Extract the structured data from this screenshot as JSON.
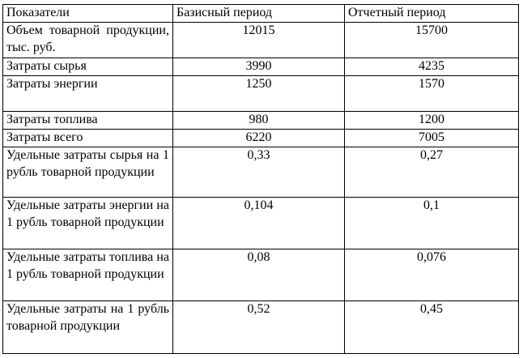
{
  "table": {
    "header": [
      "Показатели",
      "Базисный период",
      "Отчетный период"
    ],
    "rows": [
      [
        "Объем товарной продукции, тыс. руб.",
        "12015",
        "15700"
      ],
      [
        "Затраты сырья",
        "3990",
        "4235"
      ],
      [
        "Затраты энергии",
        "1250",
        "1570"
      ],
      [
        "Затраты топлива",
        "980",
        "1200"
      ],
      [
        "Затраты всего",
        "6220",
        "7005"
      ],
      [
        "Удельные затраты сырья на 1 рубль товарной продукции",
        "0,33",
        "0,27"
      ],
      [
        "Удельные затраты энергии на 1 рубль товарной продукции",
        "0,104",
        "0,1"
      ],
      [
        "Удельные затраты топлива на 1 рубль товарной продукции",
        "0,08",
        "0,076"
      ],
      [
        "Удельные затраты на 1 рубль товарной продукции",
        "0,52",
        "0,45"
      ]
    ]
  }
}
